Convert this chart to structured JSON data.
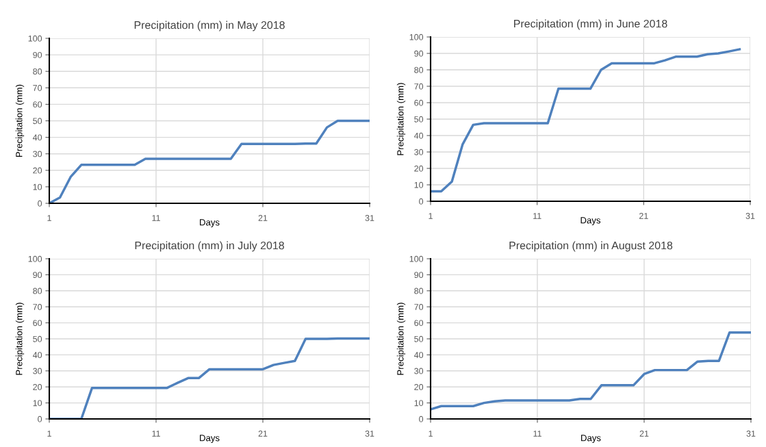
{
  "chart_data": [
    {
      "type": "line",
      "title": "Precipitation (mm) in May 2018",
      "xlabel": "Days",
      "ylabel": "Precipitation (mm)",
      "xlim": [
        1,
        31
      ],
      "xticks": [
        1,
        11,
        21,
        31
      ],
      "ylim": [
        0,
        100
      ],
      "yticks": [
        0,
        10,
        20,
        30,
        40,
        50,
        60,
        70,
        80,
        90,
        100
      ],
      "grid": true,
      "x": [
        1,
        2,
        3,
        4,
        5,
        6,
        7,
        8,
        9,
        10,
        11,
        12,
        13,
        14,
        15,
        16,
        17,
        18,
        19,
        20,
        21,
        22,
        23,
        24,
        25,
        26,
        27,
        28,
        29,
        30,
        31
      ],
      "series": [
        {
          "color": "#4f81bd",
          "values": [
            0,
            3.5,
            16,
            23.3,
            23.3,
            23.3,
            23.3,
            23.3,
            23.3,
            27,
            27,
            27,
            27,
            27,
            27,
            27,
            27,
            27,
            36,
            36,
            36,
            36,
            36,
            36,
            36.2,
            36.2,
            46,
            50,
            50,
            50,
            50
          ]
        }
      ]
    },
    {
      "type": "line",
      "title": "Precipitation (mm) in June 2018",
      "xlabel": "Days",
      "ylabel": "Precipitation (mm)",
      "xlim": [
        1,
        31
      ],
      "xticks": [
        1,
        11,
        21,
        31
      ],
      "ylim": [
        0,
        100
      ],
      "yticks": [
        0,
        10,
        20,
        30,
        40,
        50,
        60,
        70,
        80,
        90,
        100
      ],
      "grid": true,
      "x": [
        1,
        2,
        3,
        4,
        5,
        6,
        7,
        8,
        9,
        10,
        11,
        12,
        13,
        14,
        15,
        16,
        17,
        18,
        19,
        20,
        21,
        22,
        23,
        24,
        25,
        26,
        27,
        28,
        29,
        30
      ],
      "series": [
        {
          "color": "#4f81bd",
          "values": [
            6,
            6,
            12,
            34.5,
            46.5,
            47.5,
            47.5,
            47.5,
            47.5,
            47.5,
            47.5,
            47.5,
            68.5,
            68.5,
            68.5,
            68.5,
            80,
            84,
            84,
            84,
            84,
            84,
            85.8,
            88,
            88,
            88,
            89.5,
            90,
            91.2,
            92.5
          ]
        }
      ]
    },
    {
      "type": "line",
      "title": "Precipitation (mm) in July 2018",
      "xlabel": "Days",
      "ylabel": "Precipitation (mm)",
      "xlim": [
        1,
        31
      ],
      "xticks": [
        1,
        11,
        21,
        31
      ],
      "ylim": [
        0,
        100
      ],
      "yticks": [
        0,
        10,
        20,
        30,
        40,
        50,
        60,
        70,
        80,
        90,
        100
      ],
      "grid": true,
      "x": [
        1,
        2,
        3,
        4,
        5,
        6,
        7,
        8,
        9,
        10,
        11,
        12,
        13,
        14,
        15,
        16,
        17,
        18,
        19,
        20,
        21,
        22,
        23,
        24,
        25,
        26,
        27,
        28,
        29,
        30,
        31
      ],
      "series": [
        {
          "color": "#4f81bd",
          "values": [
            0,
            0,
            0,
            0,
            19.3,
            19.3,
            19.3,
            19.3,
            19.3,
            19.3,
            19.3,
            19.3,
            22.5,
            25.5,
            25.5,
            31,
            31,
            31,
            31,
            31,
            31,
            33.7,
            35,
            36.2,
            50,
            50,
            50,
            50.2,
            50.2,
            50.2,
            50.2
          ]
        }
      ]
    },
    {
      "type": "line",
      "title": "Precipitation (mm) in August 2018",
      "xlabel": "Days",
      "ylabel": "Precipitation (mm)",
      "xlim": [
        1,
        31
      ],
      "xticks": [
        1,
        11,
        21,
        31
      ],
      "ylim": [
        0,
        100
      ],
      "yticks": [
        0,
        10,
        20,
        30,
        40,
        50,
        60,
        70,
        80,
        90,
        100
      ],
      "grid": true,
      "x": [
        1,
        2,
        3,
        4,
        5,
        6,
        7,
        8,
        9,
        10,
        11,
        12,
        13,
        14,
        15,
        16,
        17,
        18,
        19,
        20,
        21,
        22,
        23,
        24,
        25,
        26,
        27,
        28,
        29,
        30,
        31
      ],
      "series": [
        {
          "color": "#4f81bd",
          "values": [
            6,
            8,
            8,
            8,
            8,
            10,
            11,
            11.5,
            11.5,
            11.5,
            11.5,
            11.5,
            11.5,
            11.5,
            12.5,
            12.5,
            21,
            21,
            21,
            21,
            28,
            30.5,
            30.5,
            30.5,
            30.5,
            35.8,
            36.2,
            36.2,
            54,
            54,
            54
          ]
        }
      ]
    }
  ]
}
